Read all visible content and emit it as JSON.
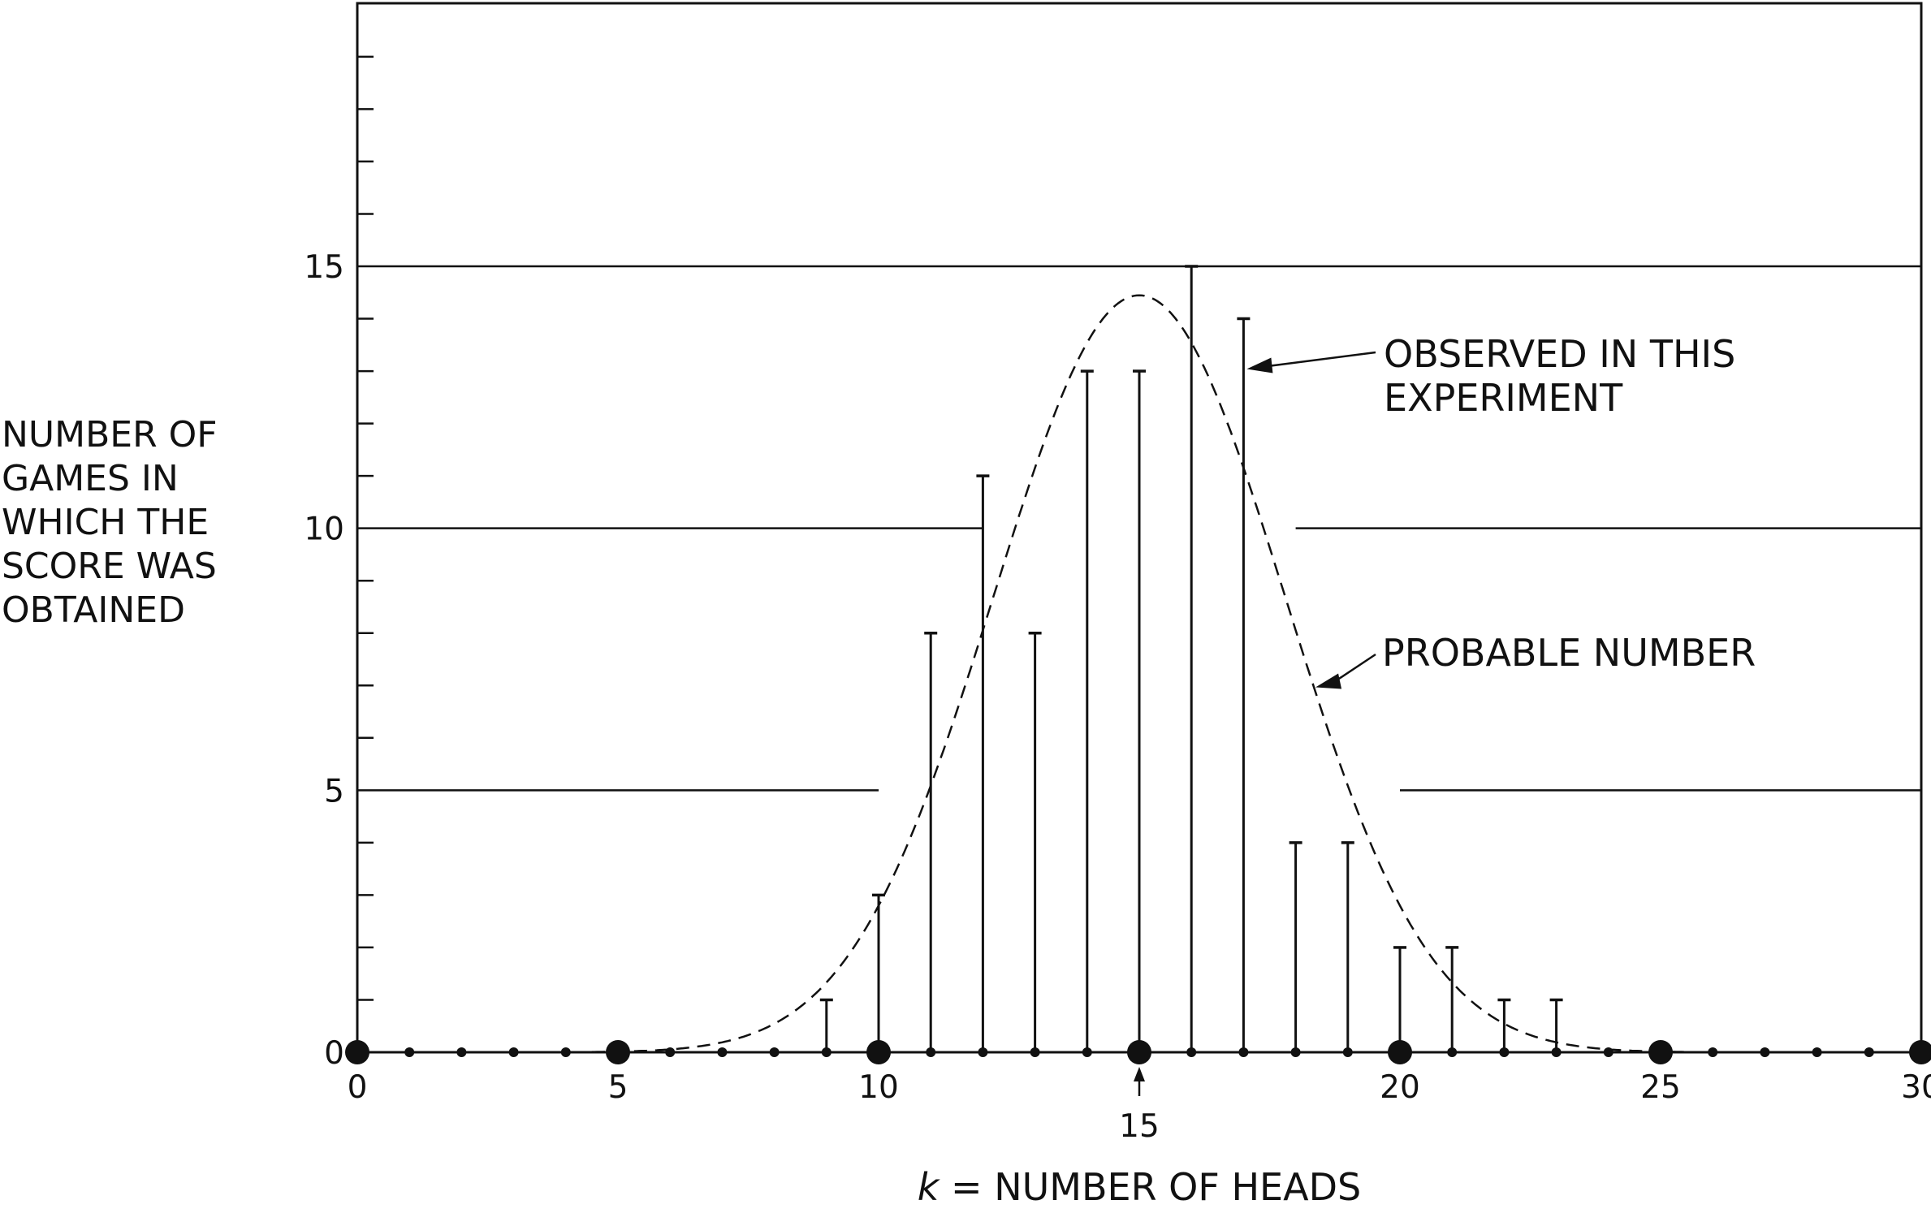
{
  "chart_data": {
    "type": "bar",
    "title": "",
    "xlabel": {
      "var": "k",
      "eq": " = ",
      "text": "NUMBER OF HEADS"
    },
    "ylabel": [
      "NUMBER OF",
      "GAMES IN",
      "WHICH THE",
      "SCORE WAS",
      "OBTAINED"
    ],
    "xlim": [
      0,
      30
    ],
    "ylim": [
      0,
      20
    ],
    "x_ticks": [
      0,
      5,
      10,
      20,
      25,
      30
    ],
    "x_tick_labels": [
      "0",
      "5",
      "10",
      "20",
      "25",
      "30"
    ],
    "x_marked": {
      "value": 15,
      "label": "15"
    },
    "y_ticks": [
      0,
      5,
      10,
      15
    ],
    "y_tick_labels": [
      "0",
      "5",
      "10",
      "15"
    ],
    "y_minor_step": 1,
    "grid_y": [
      5,
      10,
      15
    ],
    "series": [
      {
        "name": "OBSERVED IN THIS EXPERIMENT",
        "style": "stem",
        "x": [
          9,
          10,
          11,
          12,
          13,
          14,
          15,
          16,
          17,
          18,
          19,
          20,
          21,
          22,
          23
        ],
        "values": [
          1,
          3,
          8,
          11,
          8,
          13,
          13,
          15,
          14,
          4,
          4,
          2,
          2,
          1,
          1
        ]
      },
      {
        "name": "PROBABLE NUMBER",
        "style": "dashed-curve",
        "curve": {
          "distribution": "binomial",
          "n": 30,
          "p": 0.5,
          "total_games": 100
        }
      }
    ],
    "annotations": [
      {
        "lines": [
          "OBSERVED IN THIS",
          "EXPERIMENT"
        ],
        "target_series": "OBSERVED IN THIS EXPERIMENT"
      },
      {
        "lines": [
          "PROBABLE NUMBER"
        ],
        "target_series": "PROBABLE NUMBER"
      }
    ]
  }
}
